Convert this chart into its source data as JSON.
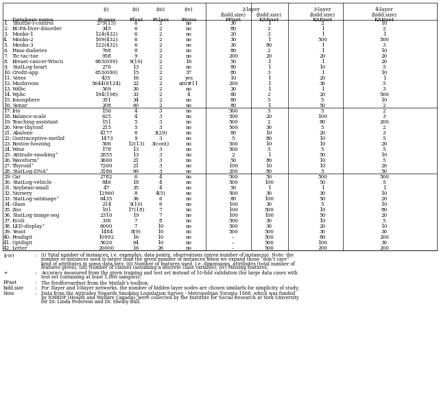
{
  "rows": [
    [
      "1.",
      "Shuttle-l-control",
      "279(15)",
      "6",
      "2",
      "no",
      "30",
      "1",
      "2",
      "10"
    ],
    [
      "2.",
      "BUPA-liver-disorder",
      "345",
      "6",
      "2",
      "no",
      "80",
      "2",
      "1",
      "2"
    ],
    [
      "3.",
      "Monks-1",
      "124(432)",
      "6",
      "2",
      "no",
      "20",
      "3",
      "1",
      "1"
    ],
    [
      "4.",
      "Monks-2",
      "169(432)",
      "6",
      "2",
      "no",
      "30",
      "1",
      "500",
      "500"
    ],
    [
      "5.",
      "Monks-3",
      "122(432)",
      "6",
      "2",
      "no",
      "30",
      "80",
      "1",
      "3"
    ],
    [
      "6.",
      "Pima-diabetes",
      "768",
      "8",
      "2",
      "no",
      "80",
      "2",
      "1",
      "10"
    ],
    [
      "7.",
      "Tic-tac-toe",
      "958",
      "9",
      "2",
      "no",
      "200",
      "20",
      "20",
      "20"
    ],
    [
      "8.",
      "Breast-cancer-Wiscn",
      "683(699)",
      "9(10)",
      "2",
      "16",
      "50",
      "1",
      "1",
      "20"
    ],
    [
      "9.",
      "StatLog-heart",
      "270",
      "13",
      "2",
      "no",
      "80",
      "1",
      "10",
      "5"
    ],
    [
      "10.",
      "Credit-app",
      "653(690)",
      "15",
      "2",
      "37",
      "80",
      "3",
      "1",
      "10"
    ],
    [
      "11.",
      "Votes",
      "435",
      "16",
      "2",
      "yes",
      "10",
      "1",
      "20",
      "1"
    ],
    [
      "12.",
      "Mushroom",
      "5644(8124)",
      "22",
      "2",
      "attr#11",
      "200",
      "1",
      "30",
      "5"
    ],
    [
      "13.",
      "Wdbc",
      "569",
      "30",
      "2",
      "no",
      "30",
      "1",
      "1",
      "3"
    ],
    [
      "14.",
      "Wpbc",
      "194(198)",
      "33",
      "2",
      "4",
      "80",
      "2",
      "20",
      "500"
    ],
    [
      "15.",
      "Ionosphere",
      "351",
      "34",
      "2",
      "no",
      "80",
      "5",
      "5",
      "10"
    ],
    [
      "16.",
      "Sonar",
      "208",
      "60",
      "2",
      "no",
      "80",
      "1",
      "50",
      "2"
    ],
    [
      "17.",
      "Iris",
      "150",
      "4",
      "3",
      "no",
      "500",
      "5",
      "5",
      "2"
    ],
    [
      "18.",
      "Balance-scale",
      "625",
      "4",
      "3",
      "no",
      "500",
      "20",
      "100",
      "3"
    ],
    [
      "19.",
      "Teaching-assistant",
      "151",
      "5",
      "3",
      "no",
      "500",
      "2",
      "80",
      "200"
    ],
    [
      "20.",
      "New-thyroid",
      "215",
      "5",
      "3",
      "no",
      "500",
      "30",
      "5",
      "2"
    ],
    [
      "21.",
      "Abalone",
      "4177",
      "8",
      "3(29)",
      "no",
      "80",
      "10",
      "20",
      "3"
    ],
    [
      "22.",
      "Contraceptive-methd",
      "1473",
      "9",
      "3",
      "no",
      "5",
      "80",
      "10",
      "5"
    ],
    [
      "23.",
      "Boston-housing",
      "506",
      "12(13)",
      "3(cont)",
      "no",
      "500",
      "10",
      "10",
      "20"
    ],
    [
      "24.",
      "Wine",
      "178",
      "13",
      "3",
      "no",
      "500",
      "5",
      "5",
      "5"
    ],
    [
      "25.",
      "Attitude-smoking⁺",
      "2855",
      "13",
      "3",
      "no",
      "2",
      "1",
      "50",
      "10"
    ],
    [
      "26.",
      "Waveform⁺",
      "3600",
      "21",
      "3",
      "no",
      "50",
      "80",
      "10",
      "5"
    ],
    [
      "27.",
      "Thyroid⁺",
      "7200",
      "21",
      "3",
      "no",
      "100",
      "10",
      "10",
      "20"
    ],
    [
      "28.",
      "StatLog-DNA⁺",
      "3186",
      "60",
      "3",
      "no",
      "200",
      "80",
      "5",
      "50"
    ],
    [
      "29.",
      "Car",
      "2782",
      "6",
      "4",
      "no",
      "500",
      "50",
      "500",
      "500"
    ],
    [
      "30.",
      "StatLog-vehicle",
      "846",
      "18",
      "4",
      "no",
      "500",
      "100",
      "50",
      "5"
    ],
    [
      "31.",
      "Soybean-small",
      "47",
      "35",
      "4",
      "no",
      "50",
      "1",
      "1",
      "1"
    ],
    [
      "32.",
      "Nursery",
      "12960",
      "8",
      "4(5)",
      "no",
      "500",
      "30",
      "30",
      "10"
    ],
    [
      "33.",
      "StatLog-satimage⁺",
      "6435",
      "36",
      "6",
      "no",
      "80",
      "100",
      "50",
      "20"
    ],
    [
      "34.",
      "Glass",
      "214",
      "9(10)",
      "6",
      "no",
      "100",
      "30",
      "5",
      "10"
    ],
    [
      "35.",
      "Zoo",
      "101",
      "17(18)",
      "7",
      "no",
      "100",
      "500",
      "10",
      "80"
    ],
    [
      "36.",
      "StatLog-image-seg",
      "2310",
      "19",
      "7",
      "no",
      "100",
      "100",
      "50",
      "20"
    ],
    [
      "37.",
      "Ecoli",
      "336",
      "7",
      "8",
      "no",
      "500",
      "30",
      "10",
      "5"
    ],
    [
      "38.",
      "LED-display⁺",
      "6000",
      "7",
      "10",
      "no",
      "500",
      "30",
      "20",
      "10"
    ],
    [
      "39.",
      "Yeast",
      "1484",
      "8(9)",
      "10",
      "no",
      "500",
      "500",
      "30",
      "30"
    ],
    [
      "40.",
      "Pendigit",
      "10992",
      "16",
      "10",
      "no",
      "–",
      "500",
      "80",
      "200"
    ],
    [
      "41.",
      "Optdigit",
      "5620",
      "64",
      "10",
      "no",
      "–",
      "500",
      "100",
      "30"
    ],
    [
      "42.",
      "Letter",
      "20000",
      "16",
      "26",
      "no",
      "–",
      "500",
      "200",
      "200"
    ]
  ],
  "section_breaks_after": [
    16,
    28,
    42
  ],
  "footnote_blocks": [
    [
      "(i-iv)",
      ":",
      "(i) Total number of instances, i.e. examples, data points, observations (given number of instances). Note: the",
      "number of instances used is larger than the given number of instances when we expand those “don’t care”",
      "kind of attributes in some data sets; (ii) Number of features used, i.e. dimensions, attributes (total number of",
      "features given); (iii) Number of classes (assuming a discrete class variable); (iv) Missing features;"
    ],
    [
      "+",
      ":",
      "Accuracy measured from the given training and test set instead of 10-fold validation (for large data cases with",
      "test set containing at least 1,000 samples);"
    ],
    [
      "FFnet",
      ":",
      "The feedforvardnet from the Matlab’s toolbox;"
    ],
    [
      "hidd.size",
      ":",
      "For 3layer and 10layer networks, the number of hidden layer nodes are chosen similarly for simplicity of study;"
    ],
    [
      "Note",
      ":",
      "Data from the Attitudes Towards Smoking Legislation Survey - Metropolitan Toronto 1988, which was funded",
      "by NHRDP (Health and Welfare Canada), were collected by the Institute for Social Research at York University",
      "for Dr. Linda Pederson and Dr. Shelby Bull."
    ]
  ],
  "bg_color": "#ffffff"
}
